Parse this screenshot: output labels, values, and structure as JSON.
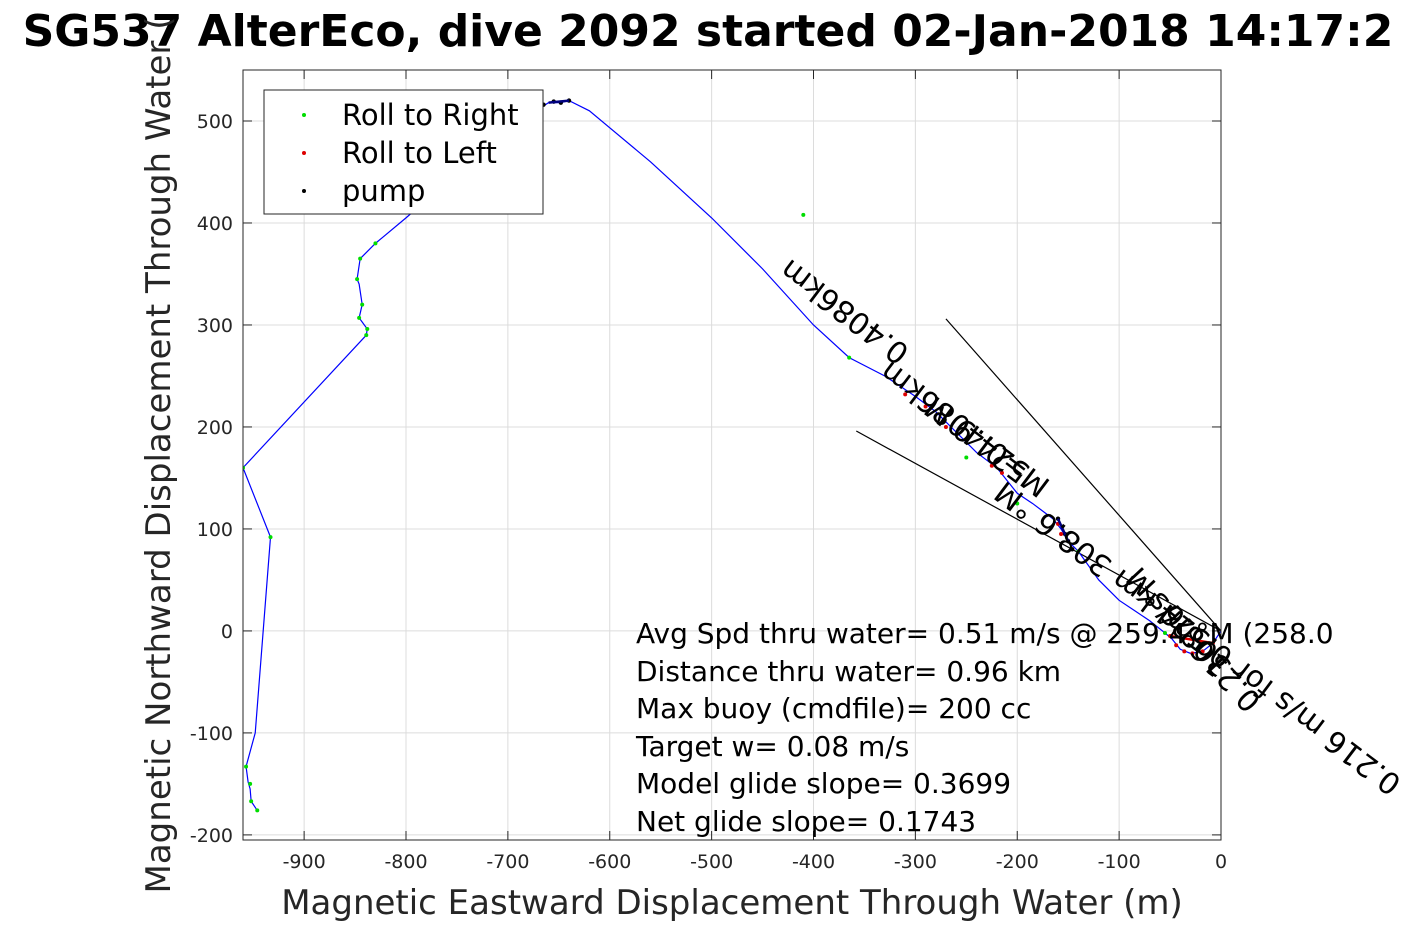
{
  "chart_data": {
    "type": "line",
    "title": "SG537 AlterEco, dive 2092 started 02-Jan-2018 14:17:2",
    "xlabel": "Magnetic Eastward Displacement Through Water (m)",
    "ylabel": "Magnetic Northward Displacement Through Water (",
    "xlim": [
      -960,
      0
    ],
    "ylim": [
      -205,
      550
    ],
    "xticks": [
      -900,
      -800,
      -700,
      -600,
      -500,
      -400,
      -300,
      -200,
      -100,
      0
    ],
    "yticks": [
      -200,
      -100,
      0,
      100,
      200,
      300,
      400,
      500
    ],
    "grid": true,
    "legend_position": "top-left",
    "legend": [
      {
        "label": "Roll to Right",
        "color": "#00dd00"
      },
      {
        "label": "Roll to Left",
        "color": "#dd0000"
      },
      {
        "label": "pump",
        "color": "#000000"
      }
    ],
    "track_color": "#0000ff",
    "track": [
      [
        0,
        0
      ],
      [
        -8,
        -12
      ],
      [
        -18,
        -20
      ],
      [
        -30,
        -22
      ],
      [
        -40,
        -18
      ],
      [
        -48,
        -8
      ],
      [
        -55,
        -2
      ],
      [
        -70,
        10
      ],
      [
        -85,
        20
      ],
      [
        -100,
        30
      ],
      [
        -120,
        50
      ],
      [
        -140,
        78
      ],
      [
        -150,
        88
      ],
      [
        -157,
        100
      ],
      [
        -165,
        110
      ],
      [
        -185,
        125
      ],
      [
        -200,
        135
      ],
      [
        -220,
        160
      ],
      [
        -240,
        175
      ],
      [
        -260,
        195
      ],
      [
        -280,
        215
      ],
      [
        -300,
        230
      ],
      [
        -330,
        250
      ],
      [
        -365,
        268
      ],
      [
        -400,
        300
      ],
      [
        -450,
        355
      ],
      [
        -500,
        405
      ],
      [
        -560,
        460
      ],
      [
        -620,
        510
      ],
      [
        -640,
        520
      ],
      [
        -648,
        518
      ],
      [
        -660,
        518
      ],
      [
        -680,
        505
      ],
      [
        -720,
        470
      ],
      [
        -760,
        440
      ],
      [
        -800,
        405
      ],
      [
        -830,
        380
      ],
      [
        -845,
        365
      ],
      [
        -848,
        345
      ],
      [
        -846,
        340
      ],
      [
        -843,
        320
      ],
      [
        -846,
        307
      ],
      [
        -838,
        296
      ],
      [
        -839,
        290
      ],
      [
        -960,
        160
      ],
      [
        -933,
        92
      ],
      [
        -948,
        -100
      ],
      [
        -957,
        -133
      ],
      [
        -955,
        -148
      ],
      [
        -953,
        -155
      ],
      [
        -952,
        -167
      ],
      [
        -946,
        -176
      ]
    ],
    "roll_right": [
      [
        -55,
        -2
      ],
      [
        -140,
        78
      ],
      [
        -200,
        125
      ],
      [
        -250,
        170
      ],
      [
        -365,
        268
      ],
      [
        -845,
        365
      ],
      [
        -848,
        345
      ],
      [
        -843,
        320
      ],
      [
        -846,
        307
      ],
      [
        -838,
        296
      ],
      [
        -839,
        290
      ],
      [
        -830,
        380
      ],
      [
        -960,
        160
      ],
      [
        -933,
        92
      ],
      [
        -957,
        -133
      ],
      [
        -953,
        -150
      ],
      [
        -952,
        -167
      ],
      [
        -946,
        -176
      ],
      [
        -410,
        408
      ]
    ],
    "roll_left": [
      [
        -8,
        -12
      ],
      [
        -18,
        -20
      ],
      [
        -28,
        -22
      ],
      [
        -36,
        -20
      ],
      [
        -44,
        -14
      ],
      [
        -50,
        -5
      ],
      [
        -160,
        105
      ],
      [
        -157,
        95
      ],
      [
        -215,
        155
      ],
      [
        -225,
        162
      ],
      [
        -270,
        200
      ],
      [
        -290,
        220
      ],
      [
        -310,
        232
      ]
    ],
    "pump": [
      [
        -150,
        88
      ],
      [
        -146,
        80
      ],
      [
        -153,
        95
      ],
      [
        -160,
        110
      ],
      [
        -648,
        518
      ],
      [
        -655,
        519
      ],
      [
        -640,
        520
      ],
      [
        -665,
        516
      ]
    ],
    "current_lines": [
      [
        [
          0,
          0
        ],
        [
          -270,
          306
        ]
      ],
      [
        [
          0,
          0
        ],
        [
          -358,
          196
        ]
      ]
    ],
    "rotated_labels": [
      {
        "text": "0.4086km",
        "from": [
          -510,
          406
        ],
        "angle_deg": 37
      },
      {
        "text": "M=0.4086km",
        "from": [
          -370,
          298
        ]
      },
      {
        "text": "524.9 M",
        "from": [
          -370,
          298
        ]
      },
      {
        "text": "0.216 m/s for 0.524 km 308.6 °M",
        "from": [
          -370,
          298
        ]
      },
      {
        "text": "308.6 °M",
        "from": [
          -130,
          112
        ]
      },
      {
        "text": "0.216 m/s",
        "from": [
          -130,
          112
        ]
      }
    ],
    "annotations": [
      "Avg Spd thru water=  0.51 m/s @ 259.4 °M (258.0",
      "Distance thru water=  0.96 km",
      "Max buoy (cmdfile)= 200 cc",
      "Target w= 0.08 m/s",
      "Model glide slope= 0.3699",
      "Net glide slope= 0.1743"
    ]
  }
}
